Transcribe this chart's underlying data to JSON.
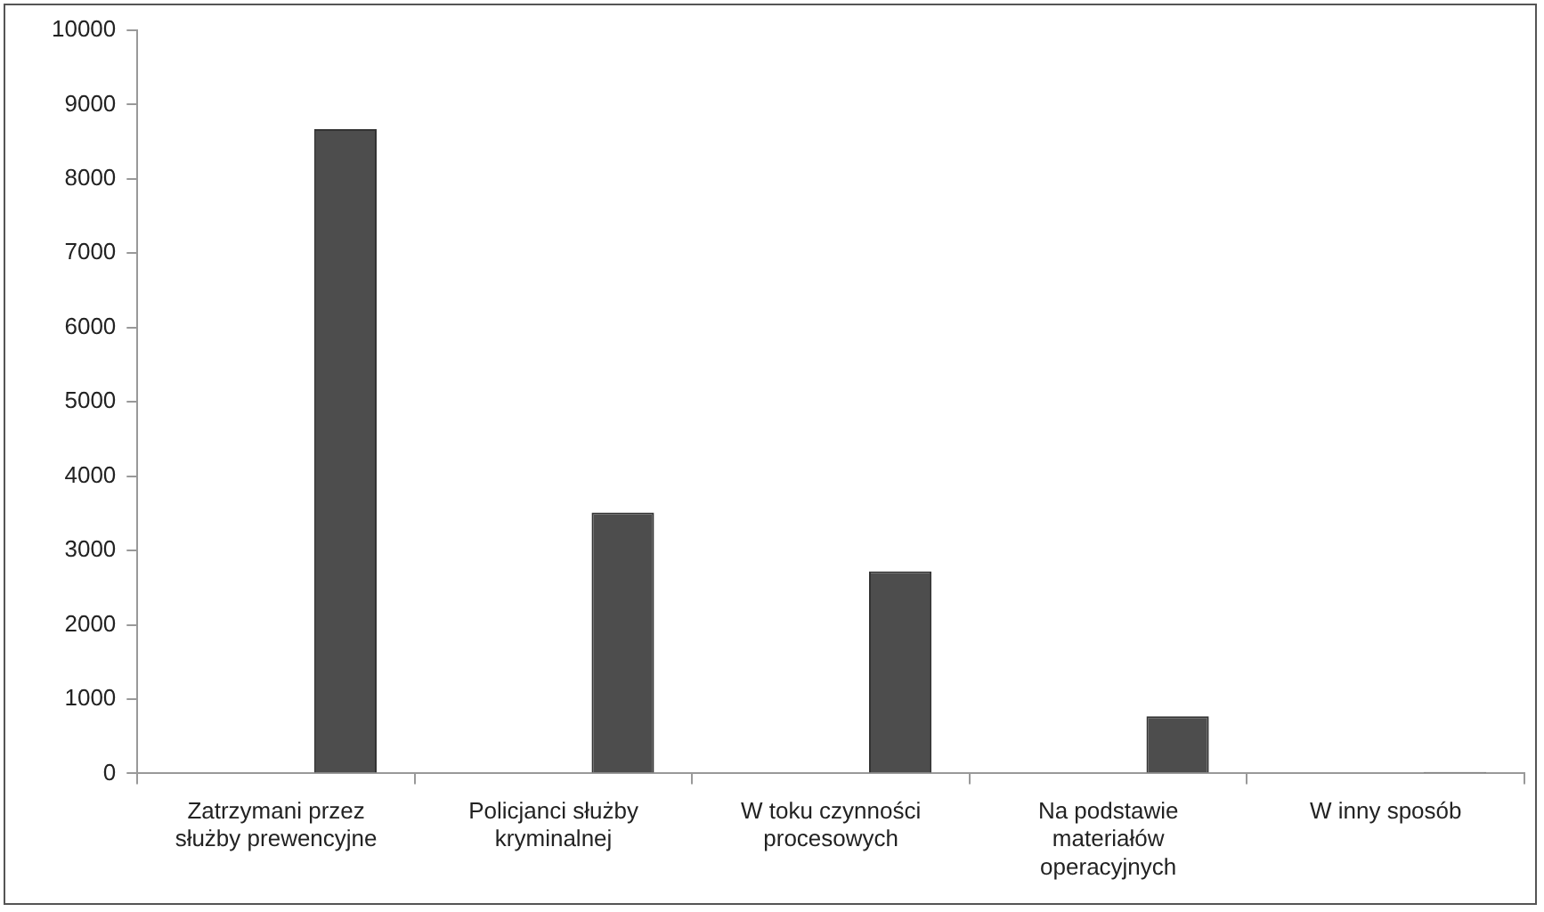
{
  "chart_data": {
    "type": "bar",
    "categories": [
      "Zatrzymani przez służby prewencyjne",
      "Policjanci służby kryminalnej",
      "W toku czynności procesowych",
      "Na podstawie materiałów operacyjnych",
      "W inny sposób"
    ],
    "series": [
      {
        "color": "#4d4d4d",
        "values": [
          8670,
          3510,
          2720,
          770,
          20
        ]
      }
    ],
    "ylim": [
      0,
      10000
    ],
    "yticks": [
      0,
      1000,
      2000,
      3000,
      4000,
      5000,
      6000,
      7000,
      8000,
      9000,
      10000
    ],
    "grid": false,
    "legend": false
  }
}
